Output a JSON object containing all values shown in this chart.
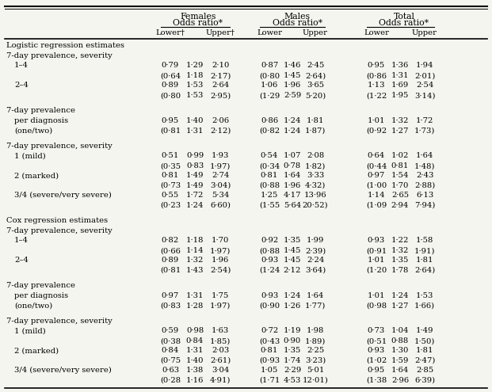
{
  "bg_color": "#f5f5f0",
  "text_color": "#000000",
  "font_size": 7.2,
  "header_font_size": 7.8,
  "rows": [
    {
      "label": "Logistic regression estimates",
      "type": "section",
      "indent": 0,
      "vals": null
    },
    {
      "label": "7-day prevalence, severity",
      "type": "section",
      "indent": 0,
      "vals": null
    },
    {
      "label": "1–4",
      "type": "data",
      "indent": 1,
      "vals": [
        "0·79",
        "1·29",
        "2·10",
        "0·87",
        "1·46",
        "2·45",
        "0·95",
        "1·36",
        "1·94"
      ]
    },
    {
      "label": "",
      "type": "ci",
      "indent": 1,
      "vals": [
        "(0·64",
        "1·18",
        "2·17)",
        "(0·80",
        "1·45",
        "2·64)",
        "(0·86",
        "1·31",
        "2·01)"
      ]
    },
    {
      "label": "2–4",
      "type": "data",
      "indent": 1,
      "vals": [
        "0·89",
        "1·53",
        "2·64",
        "1·06",
        "1·96",
        "3·65",
        "1·13",
        "1·69",
        "2·54"
      ]
    },
    {
      "label": "",
      "type": "ci",
      "indent": 1,
      "vals": [
        "(0·80",
        "1·53",
        "2·95)",
        "(1·29",
        "2·59",
        "5·20)",
        "(1·22",
        "1·95",
        "3·14)"
      ]
    },
    {
      "label": "7-day prevalence",
      "type": "section",
      "indent": 0,
      "vals": null
    },
    {
      "label": "per diagnosis",
      "type": "data",
      "indent": 1,
      "vals": [
        "0·95",
        "1·40",
        "2·06",
        "0·86",
        "1·24",
        "1·81",
        "1·01",
        "1·32",
        "1·72"
      ]
    },
    {
      "label": "(one/two)",
      "type": "ci",
      "indent": 1,
      "vals": [
        "(0·81",
        "1·31",
        "2·12)",
        "(0·82",
        "1·24",
        "1·87)",
        "(0·92",
        "1·27",
        "1·73)"
      ]
    },
    {
      "label": "7-day prevalence, severity",
      "type": "section",
      "indent": 0,
      "vals": null
    },
    {
      "label": "1 (mild)",
      "type": "data",
      "indent": 1,
      "vals": [
        "0·51",
        "0·99",
        "1·93",
        "0·54",
        "1·07",
        "2·08",
        "0·64",
        "1·02",
        "1·64"
      ]
    },
    {
      "label": "",
      "type": "ci",
      "indent": 1,
      "vals": [
        "(0·35",
        "0·83",
        "1·97)",
        "(0·34",
        "0·78",
        "1·82)",
        "(0·44",
        "0·81",
        "1·48)"
      ]
    },
    {
      "label": "2 (marked)",
      "type": "data",
      "indent": 1,
      "vals": [
        "0·81",
        "1·49",
        "2·74",
        "0·81",
        "1·64",
        "3·33",
        "0·97",
        "1·54",
        "2·43"
      ]
    },
    {
      "label": "",
      "type": "ci",
      "indent": 1,
      "vals": [
        "(0·73",
        "1·49",
        "3·04)",
        "(0·88",
        "1·96",
        "4·32)",
        "(1·00",
        "1·70",
        "2·88)"
      ]
    },
    {
      "label": "3/4 (severe/very severe)",
      "type": "data",
      "indent": 1,
      "vals": [
        "0·55",
        "1·72",
        "5·34",
        "1·25",
        "4·17",
        "13·96",
        "1·14",
        "2·65",
        "6·13"
      ]
    },
    {
      "label": "",
      "type": "ci",
      "indent": 1,
      "vals": [
        "(0·23",
        "1·24",
        "6·60)",
        "(1·55",
        "5·64",
        "20·52)",
        "(1·09",
        "2·94",
        "7·94)"
      ]
    },
    {
      "label": "Cox regression estimates",
      "type": "section",
      "indent": 0,
      "vals": null
    },
    {
      "label": "7-day prevalence, severity",
      "type": "section",
      "indent": 0,
      "vals": null
    },
    {
      "label": "1–4",
      "type": "data",
      "indent": 1,
      "vals": [
        "0·82",
        "1·18",
        "1·70",
        "0·92",
        "1·35",
        "1·99",
        "0·93",
        "1·22",
        "1·58"
      ]
    },
    {
      "label": "",
      "type": "ci",
      "indent": 1,
      "vals": [
        "(0·66",
        "1·14",
        "1·97)",
        "(0·88",
        "1·45",
        "2·39)",
        "(0·91",
        "1·32",
        "1·91)"
      ]
    },
    {
      "label": "2–4",
      "type": "data",
      "indent": 1,
      "vals": [
        "0·89",
        "1·32",
        "1·96",
        "0·93",
        "1·45",
        "2·24",
        "1·01",
        "1·35",
        "1·81"
      ]
    },
    {
      "label": "",
      "type": "ci",
      "indent": 1,
      "vals": [
        "(0·81",
        "1·43",
        "2·54)",
        "(1·24",
        "2·12",
        "3·64)",
        "(1·20",
        "1·78",
        "2·64)"
      ]
    },
    {
      "label": "7-day prevalence",
      "type": "section",
      "indent": 0,
      "vals": null
    },
    {
      "label": "per diagnosis",
      "type": "data",
      "indent": 1,
      "vals": [
        "0·97",
        "1·31",
        "1·75",
        "0·93",
        "1·24",
        "1·64",
        "1·01",
        "1·24",
        "1·53"
      ]
    },
    {
      "label": "(one/two)",
      "type": "ci",
      "indent": 1,
      "vals": [
        "(0·83",
        "1·28",
        "1·97)",
        "(0·90",
        "1·26",
        "1·77)",
        "(0·98",
        "1·27",
        "1·66)"
      ]
    },
    {
      "label": "7-day prevalence, severity",
      "type": "section",
      "indent": 0,
      "vals": null
    },
    {
      "label": "1 (mild)",
      "type": "data",
      "indent": 1,
      "vals": [
        "0·59",
        "0·98",
        "1·63",
        "0·72",
        "1·19",
        "1·98",
        "0·73",
        "1·04",
        "1·49"
      ]
    },
    {
      "label": "",
      "type": "ci",
      "indent": 1,
      "vals": [
        "(0·38",
        "0·84",
        "1·85)",
        "(0·43",
        "0·90",
        "1·89)",
        "(0·51",
        "0·88",
        "1·50)"
      ]
    },
    {
      "label": "2 (marked)",
      "type": "data",
      "indent": 1,
      "vals": [
        "0·84",
        "1·31",
        "2·03",
        "0·81",
        "1·35",
        "2·25",
        "0·93",
        "1·30",
        "1·81"
      ]
    },
    {
      "label": "",
      "type": "ci",
      "indent": 1,
      "vals": [
        "(0·75",
        "1·40",
        "2·61)",
        "(0·93",
        "1·74",
        "3·23)",
        "(1·02",
        "1·59",
        "2·47)"
      ]
    },
    {
      "label": "3/4 (severe/very severe)",
      "type": "data",
      "indent": 1,
      "vals": [
        "0·63",
        "1·38",
        "3·04",
        "1·05",
        "2·29",
        "5·01",
        "0·95",
        "1·64",
        "2·85"
      ]
    },
    {
      "label": "",
      "type": "ci",
      "indent": 1,
      "vals": [
        "(0·28",
        "1·16",
        "4·91)",
        "(1·71",
        "4·53",
        "12·01)",
        "(1·38",
        "2·96",
        "6·39)"
      ]
    }
  ]
}
